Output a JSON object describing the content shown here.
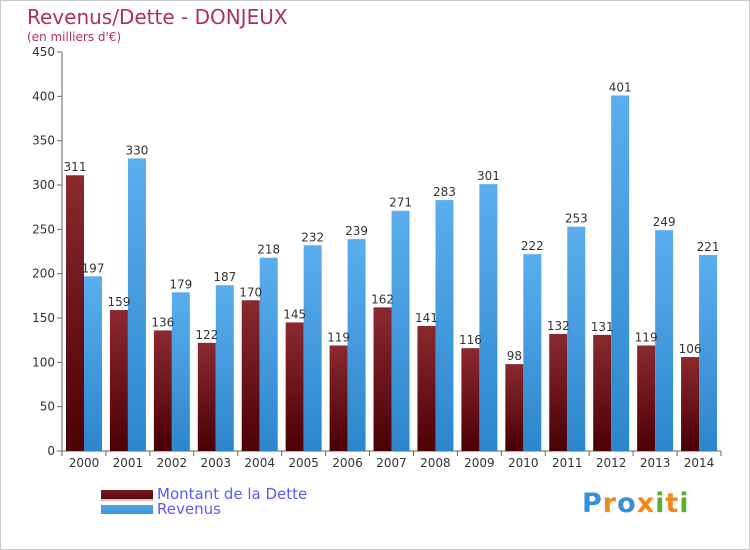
{
  "title": "Revenus/Dette - DONJEUX",
  "subtitle": "(en milliers d'€)",
  "logo": {
    "letters": [
      "P",
      "r",
      "o",
      "x",
      "i",
      "t",
      "i"
    ],
    "colors": [
      "#3a8fd8",
      "#f08a1c",
      "#3a8fd8",
      "#f08a1c",
      "#5cb030",
      "#f08a1c",
      "#5cb030"
    ]
  },
  "colors": {
    "dette": "#6b0f15",
    "revenus": "#3d95d8",
    "title": "#b0305c",
    "legend_text": "#5a5aff"
  },
  "chart_data": {
    "type": "bar",
    "categories": [
      "2000",
      "2001",
      "2002",
      "2003",
      "2004",
      "2005",
      "2006",
      "2007",
      "2008",
      "2009",
      "2010",
      "2011",
      "2012",
      "2013",
      "2014"
    ],
    "series": [
      {
        "name": "Montant de la Dette",
        "values": [
          311,
          159,
          136,
          122,
          170,
          145,
          119,
          162,
          141,
          116,
          98,
          132,
          131,
          119,
          106
        ],
        "labels": [
          "311",
          "159",
          "136",
          "122",
          "170",
          "145",
          "119",
          "162",
          "141",
          "116",
          "98",
          "132",
          "131",
          "119",
          "106"
        ]
      },
      {
        "name": "Revenus",
        "values": [
          197,
          330,
          179,
          187,
          218,
          232,
          239,
          271,
          283,
          301,
          222,
          253,
          401,
          249,
          221
        ],
        "labels": [
          "197",
          "330",
          "179",
          "187",
          "218",
          "232",
          "239",
          "271",
          "283",
          "301",
          "222",
          "253",
          "401",
          "249",
          "221"
        ]
      }
    ],
    "ylim": [
      0,
      450
    ],
    "yticks": [
      0,
      50,
      100,
      150,
      200,
      250,
      300,
      350,
      400,
      450
    ],
    "grid": false,
    "legend": "bottom-left"
  }
}
